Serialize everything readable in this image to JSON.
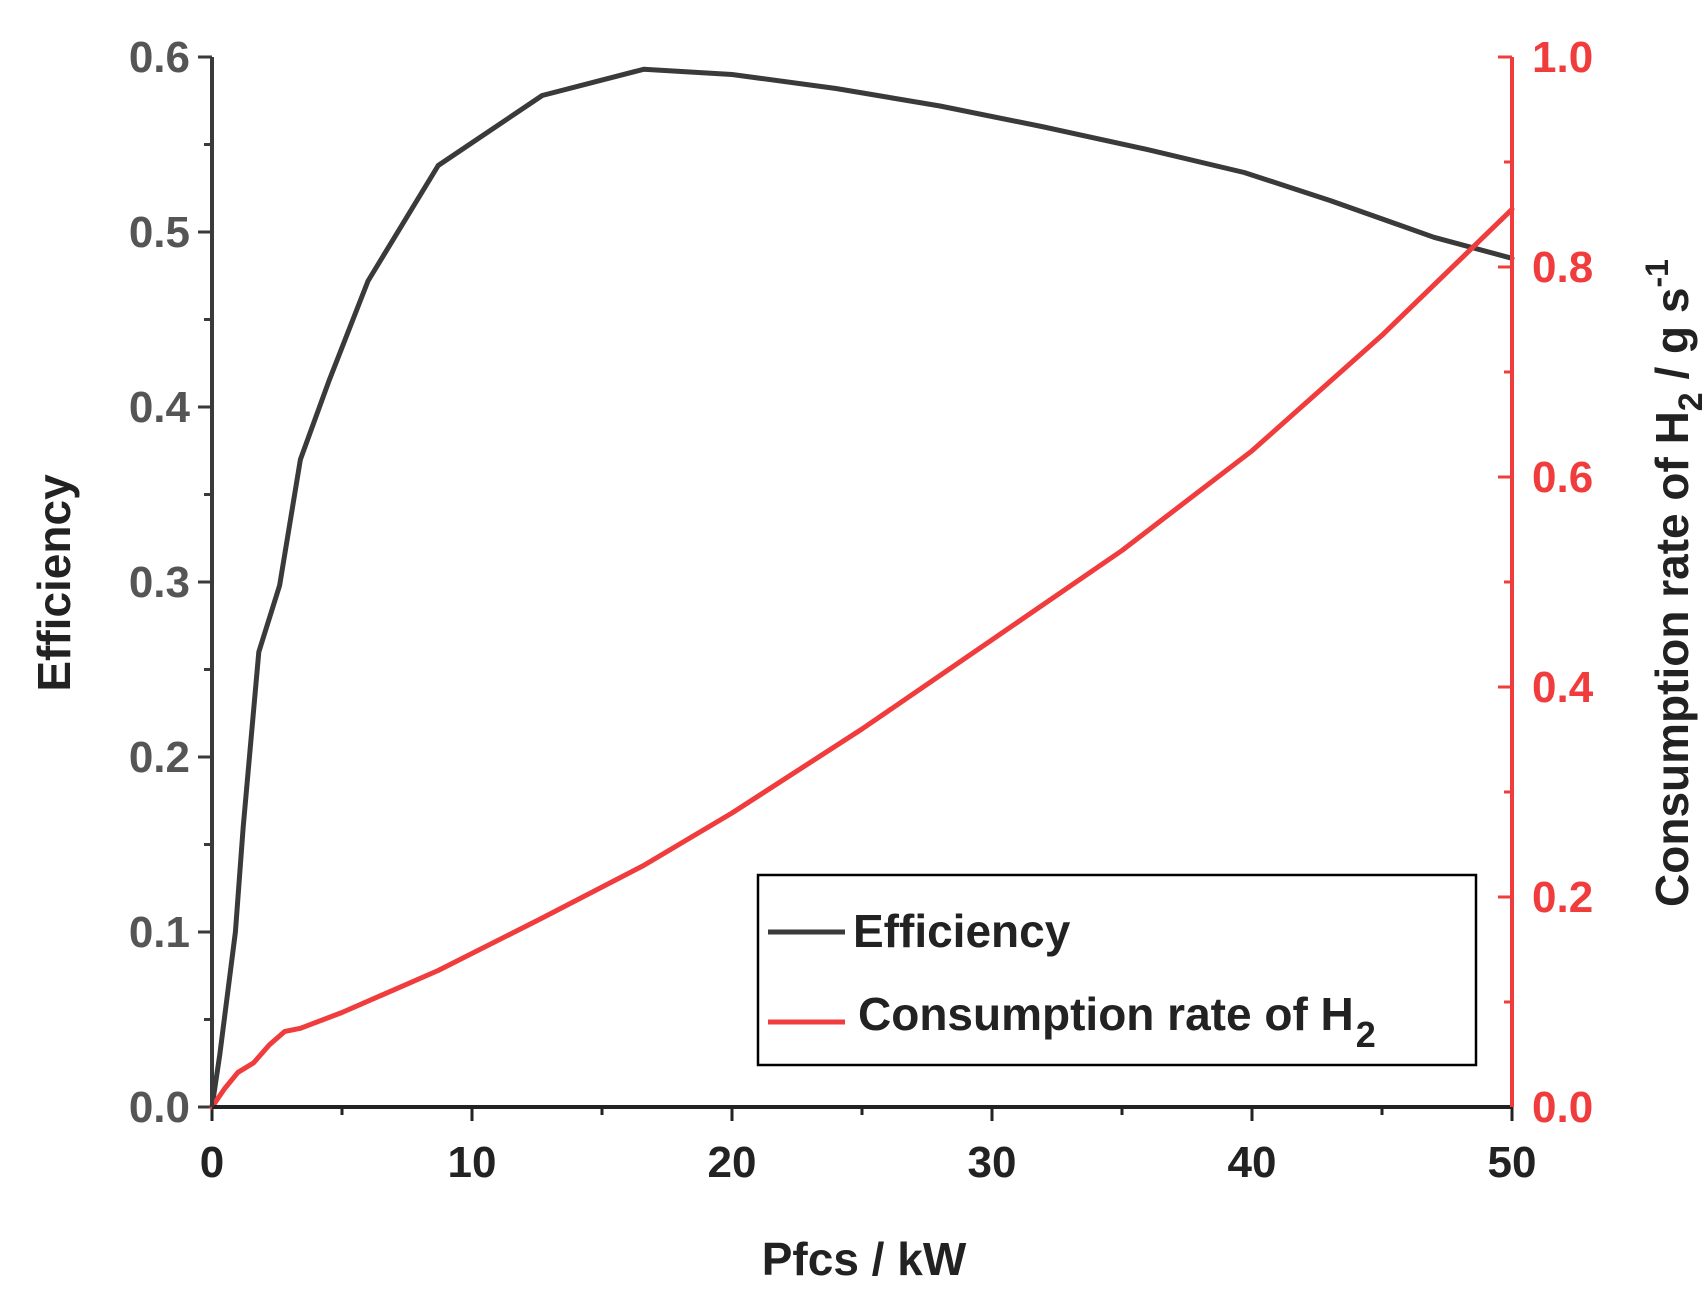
{
  "chart_data": {
    "type": "line",
    "title": "",
    "xlabel": "Pfcs / kW",
    "ylabel_left": "Efficiency",
    "ylabel_right": "Consumption rate of H",
    "ylabel_right_subscript": "2",
    "ylabel_right_suffix": " / g s",
    "ylabel_right_superscript": "-1",
    "xlim": [
      0,
      50
    ],
    "ylim_left": [
      0,
      0.6
    ],
    "ylim_right": [
      0,
      1.0
    ],
    "x_ticks": [
      0,
      10,
      20,
      30,
      40,
      50
    ],
    "x_tick_labels": [
      "0",
      "10",
      "20",
      "30",
      "40",
      "50"
    ],
    "y_left_ticks": [
      0,
      0.1,
      0.2,
      0.3,
      0.4,
      0.5,
      0.6
    ],
    "y_left_tick_labels": [
      "0.0",
      "0.1",
      "0.2",
      "0.3",
      "0.4",
      "0.5",
      "0.6"
    ],
    "y_right_ticks": [
      0,
      0.2,
      0.4,
      0.6,
      0.8,
      1.0
    ],
    "y_right_tick_labels": [
      "0.0",
      "0.2",
      "0.4",
      "0.6",
      "0.8",
      "1.0"
    ],
    "grid": false,
    "legend_position": "bottom-right",
    "series": [
      {
        "name": "Efficiency",
        "axis": "left",
        "color": "#3a3a3a",
        "x": [
          0,
          0.3,
          0.9,
          1.2,
          1.8,
          2.6,
          3.4,
          4.5,
          6,
          8.7,
          12.7,
          16.6,
          20,
          24,
          28,
          32,
          36,
          39.7,
          43,
          47,
          50
        ],
        "y": [
          0,
          0.03,
          0.1,
          0.16,
          0.26,
          0.298,
          0.37,
          0.415,
          0.472,
          0.538,
          0.578,
          0.593,
          0.59,
          0.582,
          0.572,
          0.56,
          0.547,
          0.534,
          0.518,
          0.497,
          0.485
        ]
      },
      {
        "name": "Consumption rate of H",
        "name_subscript": "2",
        "axis": "right",
        "color": "#f03c3c",
        "x": [
          0,
          0.5,
          1,
          1.6,
          2.2,
          2.8,
          3.4,
          5,
          8.7,
          12.7,
          16.6,
          20,
          25,
          30,
          35,
          40,
          45,
          50
        ],
        "y": [
          0,
          0.018,
          0.033,
          0.042,
          0.059,
          0.072,
          0.075,
          0.09,
          0.13,
          0.18,
          0.23,
          0.28,
          0.36,
          0.445,
          0.53,
          0.625,
          0.735,
          0.855
        ]
      }
    ]
  }
}
